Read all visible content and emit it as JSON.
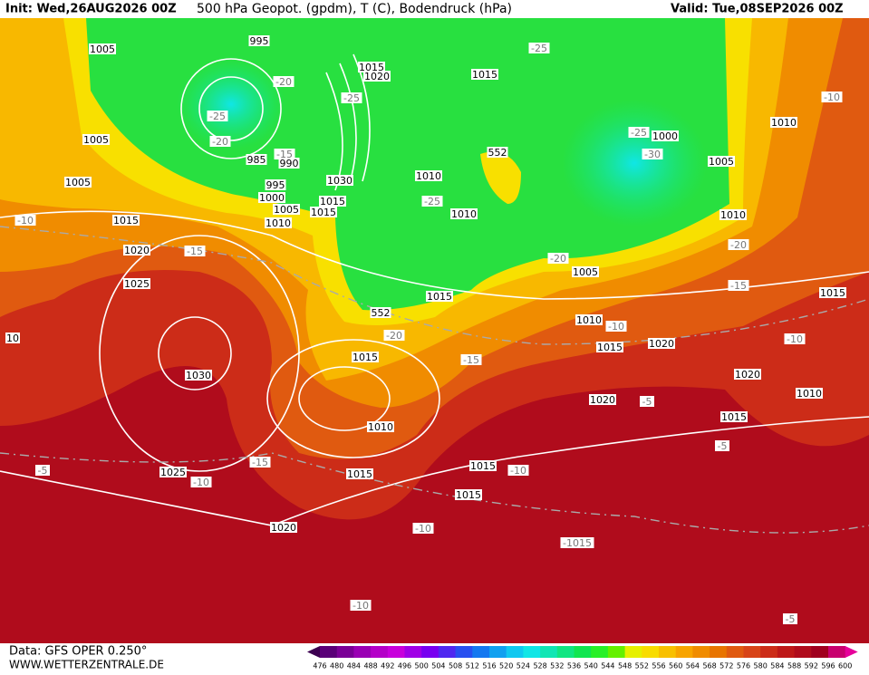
{
  "header": {
    "init": "Init: Wed,26AUG2026 00Z",
    "title": "500 hPa Geopot. (gpdm), T (C), Bodendruck (hPa)",
    "valid": "Valid: Tue,08SEP2026 00Z"
  },
  "footer": {
    "source": "Data: GFS OPER 0.250°",
    "site": "WWW.WETTERZENTRALE.DE"
  },
  "colorbar": {
    "labels": [
      476,
      480,
      484,
      488,
      492,
      496,
      500,
      504,
      508,
      512,
      516,
      520,
      524,
      528,
      532,
      536,
      540,
      544,
      548,
      552,
      556,
      560,
      564,
      568,
      572,
      576,
      580,
      584,
      588,
      592,
      596,
      600
    ],
    "colors": [
      "#3c0050",
      "#5a0078",
      "#7a0096",
      "#9a00b4",
      "#b400c8",
      "#c800dc",
      "#a000e6",
      "#7800f0",
      "#5028f0",
      "#2850f0",
      "#1478f0",
      "#10a0f0",
      "#10c8f0",
      "#10e6e6",
      "#10e6b4",
      "#10e682",
      "#10e650",
      "#28f028",
      "#64f000",
      "#e6f000",
      "#f8dc00",
      "#f8c000",
      "#f8a400",
      "#f08c00",
      "#e87400",
      "#e05a10",
      "#d84418",
      "#cc2c18",
      "#be1818",
      "#b00c1c",
      "#a0001e",
      "#c8006e",
      "#e6009a"
    ]
  },
  "map_labels": [
    "995",
    "1005",
    "1015",
    "1020",
    "1015",
    "-25",
    "-20",
    "-25",
    "-25",
    "-20",
    "985",
    "990",
    "-15",
    "995",
    "1000",
    "1005",
    "1010",
    "1030",
    "1015",
    "1015",
    "552",
    "1010",
    "-25",
    "1010",
    "1005",
    "1005",
    "-10",
    "1015",
    "-15",
    "1020",
    "1025",
    "10",
    "1030",
    "1005",
    "-25",
    "1000",
    "-30",
    "1010",
    "-10",
    "1010",
    "-20",
    "-20",
    "1005",
    "-15",
    "1015",
    "552",
    "1010",
    "-10",
    "1015",
    "-20",
    "1015",
    "1015",
    "1020",
    "-15",
    "-10",
    "1020",
    "1010",
    "1020",
    "-5",
    "1015",
    "1010",
    "-15",
    "-5",
    "-5",
    "1025",
    "-10",
    "1015",
    "1015",
    "-10",
    "1015",
    "1020",
    "-10",
    "-1015",
    "-10",
    "-5"
  ]
}
